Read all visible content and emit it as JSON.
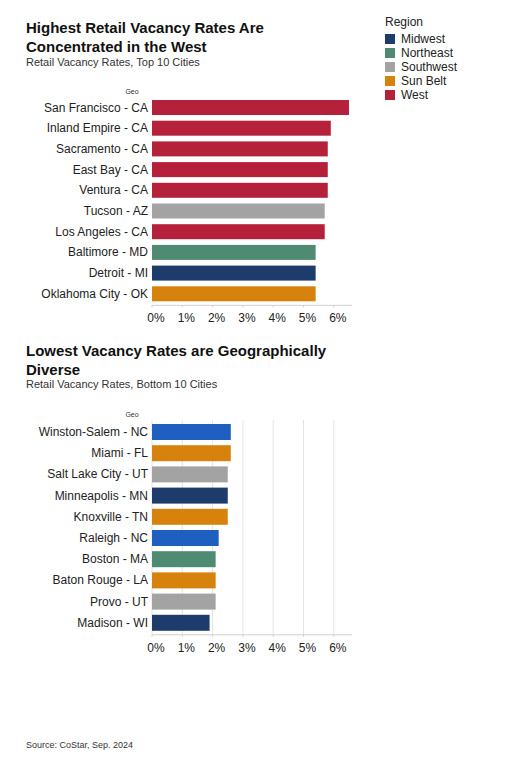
{
  "chart_data": [
    {
      "type": "bar",
      "orientation": "horizontal",
      "title": "Highest Retail Vacancy Rates Are Concentrated in the West",
      "subtitle": "Retail Vacancy Rates, Top 10 Cities",
      "y_label": "Geo",
      "categories": [
        "San Francisco - CA",
        "Inland Empire - CA",
        "Sacramento - CA",
        "East Bay - CA",
        "Ventura - CA",
        "Tucson - AZ",
        "Los Angeles - CA",
        "Baltimore - MD",
        "Detroit - MI",
        "Oklahoma City - OK"
      ],
      "values": [
        6.5,
        5.9,
        5.8,
        5.8,
        5.8,
        5.7,
        5.7,
        5.4,
        5.4,
        5.4
      ],
      "colors": [
        "#b5213a",
        "#b5213a",
        "#b5213a",
        "#b5213a",
        "#b5213a",
        "#a3a3a3",
        "#b5213a",
        "#4f8a73",
        "#1d3c6c",
        "#d7820c"
      ],
      "xlim": [
        0,
        6.6
      ],
      "xticks": [
        {
          "value": 0,
          "label": "0%"
        },
        {
          "value": 1,
          "label": "1%"
        },
        {
          "value": 2,
          "label": "2%"
        },
        {
          "value": 3,
          "label": "3%"
        },
        {
          "value": 4,
          "label": "4%"
        },
        {
          "value": 5,
          "label": "5%"
        },
        {
          "value": 6,
          "label": "6%"
        }
      ],
      "grid": false,
      "legend": "top-right",
      "legend_title": "Region",
      "legend_entries": [
        {
          "name": "Midwest",
          "color": "#1d3c6c"
        },
        {
          "name": "Northeast",
          "color": "#4f8a73"
        },
        {
          "name": "Southwest",
          "color": "#a3a3a3"
        },
        {
          "name": "Sun Belt",
          "color": "#d7820c"
        },
        {
          "name": "West",
          "color": "#b5213a"
        }
      ]
    },
    {
      "type": "bar",
      "orientation": "horizontal",
      "title": "Lowest Vacancy Rates are Geographically Diverse",
      "subtitle": "Retail Vacancy Rates, Bottom 10 Cities",
      "y_label": "Geo",
      "categories": [
        "Winston-Salem - NC",
        "Miami - FL",
        "Salt Lake City - UT",
        "Minneapolis - MN",
        "Knoxville - TN",
        "Raleigh - NC",
        "Boston - MA",
        "Baton Rouge - LA",
        "Provo - UT",
        "Madison - WI"
      ],
      "values": [
        2.6,
        2.6,
        2.5,
        2.5,
        2.5,
        2.2,
        2.1,
        2.1,
        2.1,
        1.9
      ],
      "colors": [
        "#1f5fbf",
        "#d7820c",
        "#a3a3a3",
        "#1d3c6c",
        "#d7820c",
        "#1f5fbf",
        "#4f8a73",
        "#d7820c",
        "#a3a3a3",
        "#1d3c6c"
      ],
      "xlim": [
        0,
        6.6
      ],
      "xticks": [
        {
          "value": 0,
          "label": "0%"
        },
        {
          "value": 1,
          "label": "1%"
        },
        {
          "value": 2,
          "label": "2%"
        },
        {
          "value": 3,
          "label": "3%"
        },
        {
          "value": 4,
          "label": "4%"
        },
        {
          "value": 5,
          "label": "5%"
        },
        {
          "value": 6,
          "label": "6%"
        }
      ],
      "grid": true
    }
  ],
  "source": "Source: CoStar, Sep. 2024"
}
